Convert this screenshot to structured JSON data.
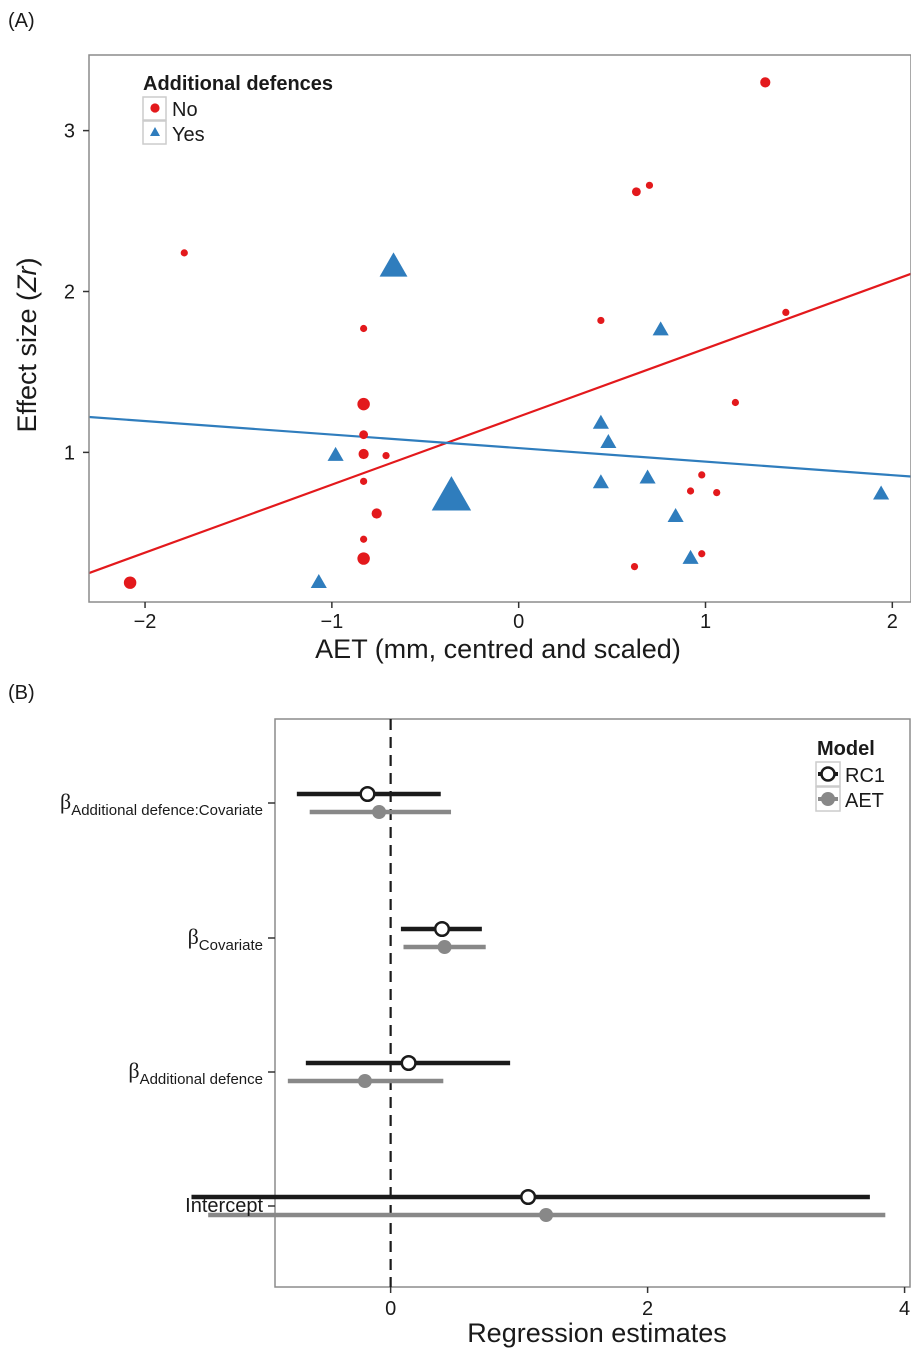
{
  "chart_data": [
    {
      "panel_label": "(A)",
      "type": "scatter",
      "xlabel": "AET (mm, centred and scaled)",
      "ylabel_prefix": "Effect size (",
      "ylabel_italic": "Zr",
      "ylabel_suffix": ")",
      "xlim": [
        -2.3,
        2.1
      ],
      "ylim": [
        0.07,
        3.47
      ],
      "xticks": [
        -2,
        -1,
        0,
        1,
        2
      ],
      "yticks": [
        1,
        2,
        3
      ],
      "xtick_labels": [
        "−2",
        "−1",
        "0",
        "1",
        "2"
      ],
      "ytick_labels": [
        "1",
        "2",
        "3"
      ],
      "legend": {
        "title": "Additional defences",
        "position": "top-left",
        "entries": [
          "No",
          "Yes"
        ]
      },
      "colors": {
        "No": "#e3191c",
        "Yes": "#2f7dbd"
      },
      "series": [
        {
          "name": "No",
          "marker": "circle",
          "color": "#e3191c",
          "points": [
            {
              "x": -2.08,
              "y": 0.19,
              "w": 3
            },
            {
              "x": -1.79,
              "y": 2.24,
              "w": 1
            },
            {
              "x": -0.83,
              "y": 1.77,
              "w": 1
            },
            {
              "x": -0.83,
              "y": 1.3,
              "w": 3
            },
            {
              "x": -0.83,
              "y": 1.11,
              "w": 1.5
            },
            {
              "x": -0.83,
              "y": 0.99,
              "w": 2
            },
            {
              "x": -0.71,
              "y": 0.98,
              "w": 1
            },
            {
              "x": -0.83,
              "y": 0.82,
              "w": 1
            },
            {
              "x": -0.76,
              "y": 0.62,
              "w": 2
            },
            {
              "x": -0.83,
              "y": 0.46,
              "w": 1
            },
            {
              "x": -0.83,
              "y": 0.34,
              "w": 3
            },
            {
              "x": 0.44,
              "y": 1.82,
              "w": 1
            },
            {
              "x": 0.63,
              "y": 2.62,
              "w": 1.5
            },
            {
              "x": 0.7,
              "y": 2.66,
              "w": 1
            },
            {
              "x": 0.62,
              "y": 0.29,
              "w": 1
            },
            {
              "x": 0.92,
              "y": 0.76,
              "w": 1
            },
            {
              "x": 0.98,
              "y": 0.86,
              "w": 1
            },
            {
              "x": 0.98,
              "y": 0.37,
              "w": 1
            },
            {
              "x": 1.06,
              "y": 0.75,
              "w": 1
            },
            {
              "x": 1.16,
              "y": 1.31,
              "w": 1
            },
            {
              "x": 1.32,
              "y": 3.3,
              "w": 2
            },
            {
              "x": 1.43,
              "y": 1.87,
              "w": 1
            }
          ],
          "fit": {
            "x": [
              -2.3,
              2.1
            ],
            "y": [
              0.25,
              2.11
            ]
          }
        },
        {
          "name": "Yes",
          "marker": "triangle",
          "color": "#2f7dbd",
          "points": [
            {
              "x": -1.07,
              "y": 0.19,
              "w": 1
            },
            {
              "x": -0.98,
              "y": 0.98,
              "w": 1
            },
            {
              "x": -0.67,
              "y": 2.15,
              "w": 3
            },
            {
              "x": -0.36,
              "y": 0.72,
              "w": 6
            },
            {
              "x": 0.44,
              "y": 1.18,
              "w": 1
            },
            {
              "x": 0.44,
              "y": 0.81,
              "w": 1
            },
            {
              "x": 0.48,
              "y": 1.06,
              "w": 1
            },
            {
              "x": 0.69,
              "y": 0.84,
              "w": 1
            },
            {
              "x": 0.76,
              "y": 1.76,
              "w": 1
            },
            {
              "x": 0.84,
              "y": 0.6,
              "w": 1
            },
            {
              "x": 0.92,
              "y": 0.34,
              "w": 1
            },
            {
              "x": 1.94,
              "y": 0.74,
              "w": 1
            }
          ],
          "fit": {
            "x": [
              -2.3,
              2.1
            ],
            "y": [
              1.22,
              0.85
            ]
          }
        }
      ]
    },
    {
      "panel_label": "(B)",
      "type": "forest",
      "xlabel": "Regression estimates",
      "xlim": [
        -0.9,
        4.05
      ],
      "xticks": [
        0,
        2,
        4
      ],
      "xtick_labels": [
        "0",
        "2",
        "4"
      ],
      "reference_line": 0,
      "legend": {
        "title": "Model",
        "position": "top-right",
        "entries": [
          "RC1",
          "AET"
        ]
      },
      "colors": {
        "RC1": "#1a1a1a",
        "AET": "#888888"
      },
      "rows": [
        {
          "symbol": "β",
          "subscript": "Additional defence:Covariate",
          "text": ""
        },
        {
          "symbol": "β",
          "subscript": "Covariate",
          "text": ""
        },
        {
          "symbol": "β",
          "subscript": "Additional defence",
          "text": ""
        },
        {
          "symbol": "",
          "subscript": "",
          "text": "Intercept"
        }
      ],
      "series": [
        {
          "name": "RC1",
          "color": "#1a1a1a",
          "fill": "#ffffff",
          "estimates": [
            -0.18,
            0.4,
            0.14,
            1.07
          ],
          "lower": [
            -0.73,
            0.08,
            -0.66,
            -1.55
          ],
          "upper": [
            0.39,
            0.71,
            0.93,
            3.73
          ]
        },
        {
          "name": "AET",
          "color": "#888888",
          "fill": "#888888",
          "estimates": [
            -0.09,
            0.42,
            -0.2,
            1.21
          ],
          "lower": [
            -0.63,
            0.1,
            -0.8,
            -1.42
          ],
          "upper": [
            0.47,
            0.74,
            0.41,
            3.85
          ]
        }
      ]
    }
  ]
}
